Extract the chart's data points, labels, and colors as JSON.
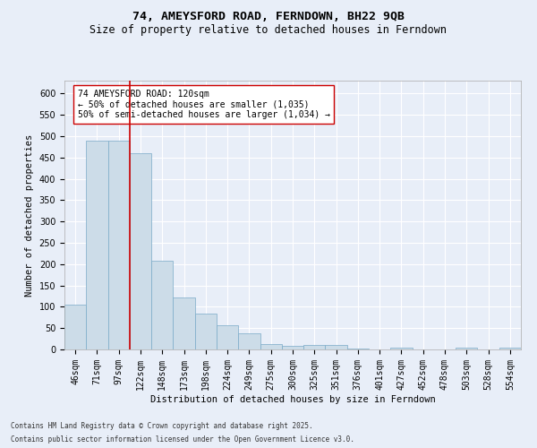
{
  "title": "74, AMEYSFORD ROAD, FERNDOWN, BH22 9QB",
  "subtitle": "Size of property relative to detached houses in Ferndown",
  "xlabel": "Distribution of detached houses by size in Ferndown",
  "ylabel": "Number of detached properties",
  "footer1": "Contains HM Land Registry data © Crown copyright and database right 2025.",
  "footer2": "Contains public sector information licensed under the Open Government Licence v3.0.",
  "categories": [
    "46sqm",
    "71sqm",
    "97sqm",
    "122sqm",
    "148sqm",
    "173sqm",
    "198sqm",
    "224sqm",
    "249sqm",
    "275sqm",
    "300sqm",
    "325sqm",
    "351sqm",
    "376sqm",
    "401sqm",
    "427sqm",
    "452sqm",
    "478sqm",
    "503sqm",
    "528sqm",
    "554sqm"
  ],
  "values": [
    105,
    490,
    490,
    460,
    207,
    122,
    83,
    57,
    38,
    13,
    8,
    10,
    10,
    3,
    0,
    5,
    0,
    0,
    5,
    0,
    5
  ],
  "bar_color": "#ccdce8",
  "bar_edge_color": "#7aaac8",
  "vline_x": 2.5,
  "vline_color": "#cc0000",
  "annotation_text": "74 AMEYSFORD ROAD: 120sqm\n← 50% of detached houses are smaller (1,035)\n50% of semi-detached houses are larger (1,034) →",
  "annotation_box_color": "#ffffff",
  "annotation_box_edge": "#cc0000",
  "ylim": [
    0,
    630
  ],
  "yticks": [
    0,
    50,
    100,
    150,
    200,
    250,
    300,
    350,
    400,
    450,
    500,
    550,
    600
  ],
  "background_color": "#e8eef8",
  "grid_color": "#ffffff",
  "title_fontsize": 9.5,
  "subtitle_fontsize": 8.5,
  "axis_label_fontsize": 7.5,
  "tick_fontsize": 7,
  "annotation_fontsize": 7,
  "footer_fontsize": 5.5
}
